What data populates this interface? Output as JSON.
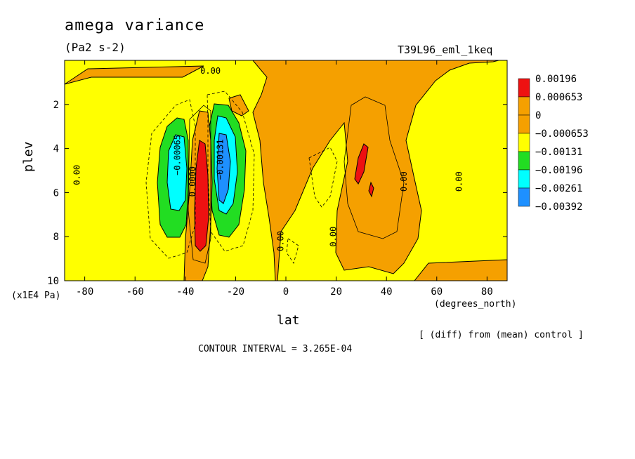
{
  "chart_data": {
    "type": "heatmap",
    "title": "amega variance",
    "units": "(Pa2 s-2)",
    "run_label": "T39L96_eml_1keq",
    "xlabel": "lat",
    "xunits": "(degrees_north)",
    "ylabel": "plev",
    "yunits": "(x1E4 Pa)",
    "xlim": [
      -88,
      88
    ],
    "ylim": [
      10,
      0
    ],
    "x_ticks": [
      -80,
      -60,
      -40,
      -20,
      0,
      20,
      40,
      60,
      80
    ],
    "x_tick_labels": [
      "-80",
      "-60",
      "-40",
      "-20",
      "0",
      "20",
      "40",
      "60",
      "80"
    ],
    "y_ticks": [
      2,
      4,
      6,
      8,
      10
    ],
    "y_tick_labels": [
      "2",
      "4",
      "6",
      "8",
      "10"
    ],
    "legend": {
      "levels": [
        "0.00196",
        "0.000653",
        "0",
        "−0.000653",
        "−0.00131",
        "−0.00196",
        "−0.00261",
        "−0.00392"
      ],
      "colors": [
        "#ee1111",
        "#f5a000",
        "#f5a000",
        "#ffff00",
        "#22dd22",
        "#00ffff",
        "#1e90ff",
        "#0055ff"
      ]
    },
    "contour_labels": [
      {
        "text": "0.00",
        "lat": -30,
        "plev": 0.6
      },
      {
        "text": "0.00",
        "lat": -82,
        "plev": 5.2
      },
      {
        "text": "−0.00065",
        "lat": -42,
        "plev": 4.3
      },
      {
        "text": "0.0000",
        "lat": -36,
        "plev": 5.5
      },
      {
        "text": "−0.00131",
        "lat": -25,
        "plev": 4.5
      },
      {
        "text": "0.00",
        "lat": -1,
        "plev": 8.2
      },
      {
        "text": "0.00",
        "lat": 20,
        "plev": 8.0
      },
      {
        "text": "0.00",
        "lat": 48,
        "plev": 5.5
      },
      {
        "text": "0.00",
        "lat": 70,
        "plev": 5.5
      }
    ],
    "features": [
      {
        "name": "negative-lobe-sh-west",
        "lat": -42,
        "plev": 5.0,
        "value": -0.00196
      },
      {
        "name": "positive-core-sh",
        "lat": -34,
        "plev": 6.0,
        "value": 0.00196
      },
      {
        "name": "negative-lobe-sh-east",
        "lat": -24,
        "plev": 5.0,
        "value": -0.00261
      },
      {
        "name": "positive-core-nh",
        "lat": 30,
        "plev": 4.7,
        "value": 0.00196
      }
    ]
  },
  "contour_interval": "CONTOUR INTERVAL = 3.265E-04",
  "diff_note": "[ (diff) from (mean) control ]"
}
